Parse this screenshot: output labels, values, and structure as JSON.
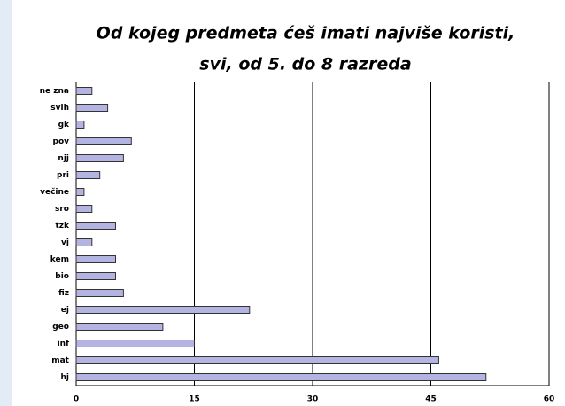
{
  "chart_data": {
    "type": "bar",
    "orientation": "horizontal",
    "title": [
      "Od kojeg predmeta ćeš imati najviše koristi,",
      "svi, od 5. do 8 razreda"
    ],
    "categories": [
      "ne zna",
      "svih",
      "gk",
      "pov",
      "njj",
      "pri",
      "večine",
      "sro",
      "tzk",
      "vj",
      "kem",
      "bio",
      "fiz",
      "ej",
      "geo",
      "inf",
      "mat",
      "hj"
    ],
    "values": [
      2,
      4,
      1,
      7,
      6,
      3,
      1,
      2,
      5,
      2,
      5,
      5,
      6,
      22,
      11,
      15,
      46,
      52
    ],
    "color": "#b4b4e2",
    "xlim": [
      0,
      60
    ],
    "xticks": [
      0,
      15,
      30,
      45,
      60
    ],
    "grid": true
  }
}
